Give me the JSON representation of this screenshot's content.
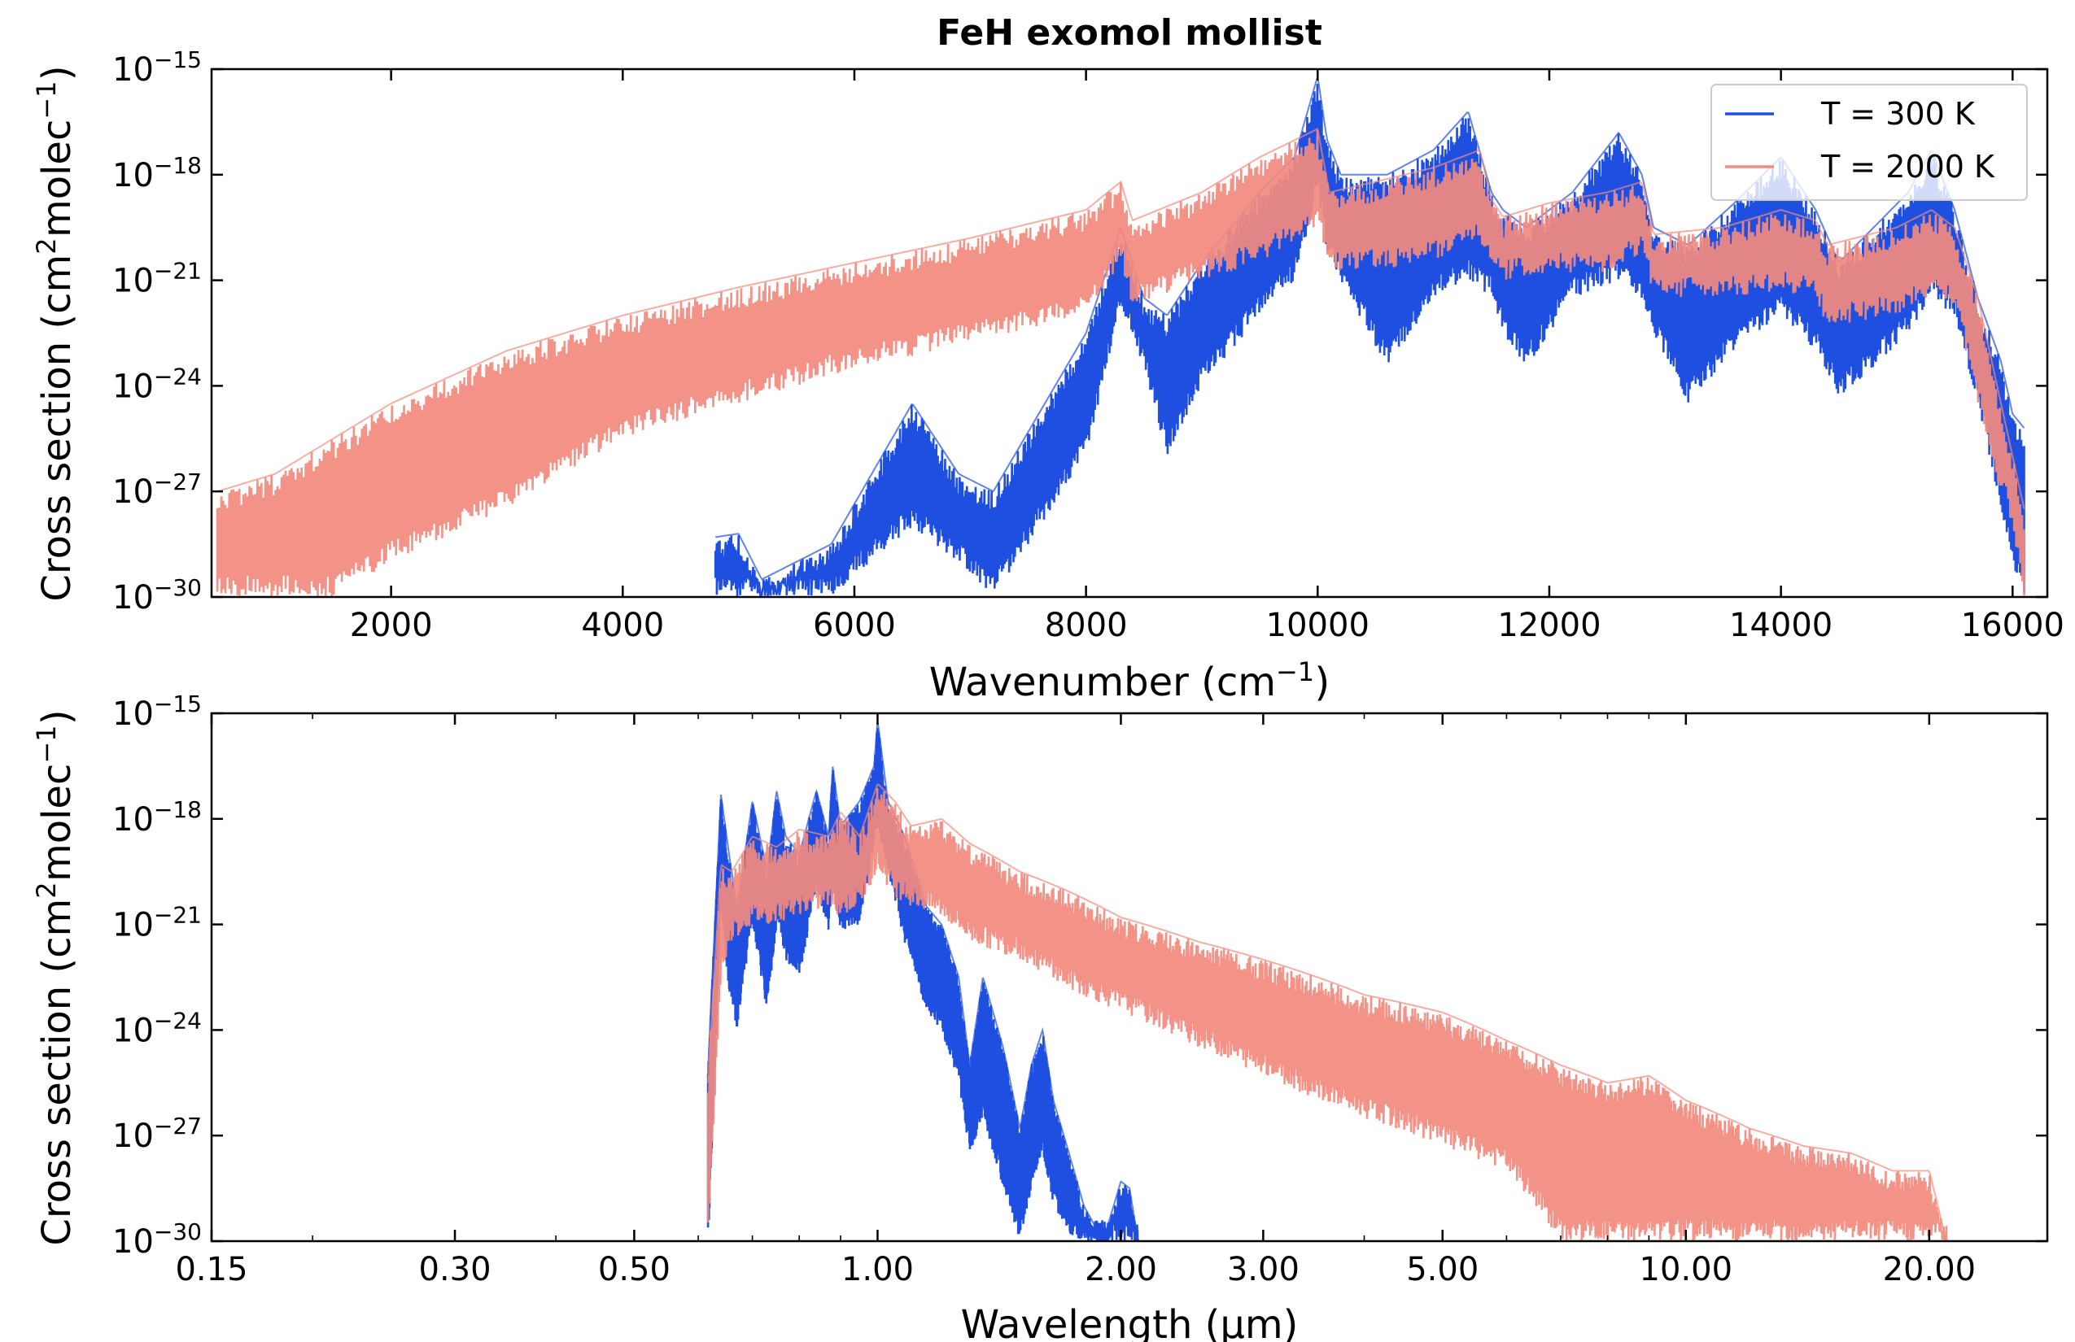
{
  "chart_data": [
    {
      "type": "line",
      "title": "FeH exomol mollist",
      "xlabel": "Wavenumber (cm⁻¹)",
      "ylabel": "Cross section (cm² molec⁻¹)",
      "xscale": "linear",
      "yscale": "log",
      "xlim": [
        450,
        16300
      ],
      "ylim": [
        1e-30,
        1e-15
      ],
      "xticks": [
        2000,
        4000,
        6000,
        8000,
        10000,
        12000,
        14000,
        16000
      ],
      "xtick_labels": [
        "2000",
        "4000",
        "6000",
        "8000",
        "10000",
        "12000",
        "14000",
        "16000"
      ],
      "ytick_exponents": [
        -15,
        -18,
        -21,
        -24,
        -27,
        -30
      ],
      "legend_position": "top-right",
      "series": [
        {
          "name": "T = 300 K",
          "color": "#1f4fe0",
          "envelope_x": [
            4800,
            5000,
            5200,
            5800,
            6500,
            6900,
            7200,
            8000,
            8300,
            8500,
            8700,
            9000,
            9500,
            9800,
            10000,
            10080,
            10200,
            10600,
            11000,
            11300,
            11500,
            11600,
            11800,
            12200,
            12600,
            12800,
            12900,
            13200,
            13600,
            14000,
            14300,
            14500,
            14800,
            15100,
            15300,
            15500,
            15700,
            15900,
            16000,
            16100
          ],
          "upper_log10": [
            -28.3,
            -28.2,
            -29.5,
            -28.5,
            -24.5,
            -26.5,
            -27,
            -22.5,
            -19.5,
            -21.5,
            -22,
            -20.5,
            -18.5,
            -17.5,
            -15.2,
            -17,
            -18,
            -18,
            -17.3,
            -16.2,
            -18.5,
            -19,
            -19.5,
            -18.5,
            -16.8,
            -18,
            -19.5,
            -20,
            -18.8,
            -17.5,
            -19,
            -20.5,
            -19.5,
            -18.5,
            -17.3,
            -19,
            -21.5,
            -23.3,
            -24.8,
            -25.2
          ],
          "lower_log10": [
            -30,
            -30,
            -30,
            -30,
            -28,
            -29,
            -30,
            -26,
            -21.8,
            -23.5,
            -26,
            -24,
            -22,
            -21,
            -18.5,
            -20.2,
            -21,
            -23.5,
            -21.5,
            -21,
            -21.5,
            -22.5,
            -23.5,
            -21.5,
            -21,
            -21.5,
            -22.5,
            -24.5,
            -23,
            -22,
            -23,
            -24.3,
            -23.5,
            -22.5,
            -21.5,
            -22,
            -24.5,
            -27.5,
            -29.2,
            -30
          ]
        },
        {
          "name": "T = 2000 K",
          "color": "#f28a7e",
          "envelope_x": [
            500,
            1000,
            1500,
            2000,
            3000,
            4000,
            5000,
            6000,
            7000,
            8000,
            8300,
            8400,
            9000,
            9500,
            10000,
            10100,
            10500,
            11000,
            11400,
            11500,
            11600,
            12000,
            12500,
            12800,
            12900,
            13500,
            14000,
            14300,
            14400,
            15000,
            15300,
            15500,
            15700,
            15800,
            16000,
            16100
          ],
          "upper_log10": [
            -27,
            -26.5,
            -25.5,
            -24.5,
            -23,
            -22,
            -21.2,
            -20.5,
            -19.8,
            -19,
            -18.2,
            -19.3,
            -18.5,
            -17.5,
            -16.7,
            -18.5,
            -18.2,
            -17.8,
            -17.3,
            -18.7,
            -19.2,
            -18.8,
            -18.5,
            -18.2,
            -19.7,
            -19.5,
            -19,
            -19.3,
            -20,
            -19.5,
            -19,
            -19.5,
            -21.5,
            -23,
            -26,
            -27.5
          ],
          "lower_log10": [
            -30,
            -30,
            -30,
            -29,
            -27.5,
            -25.5,
            -24.5,
            -23.5,
            -22.8,
            -22,
            -20.5,
            -21.8,
            -21,
            -20.5,
            -19.5,
            -20.8,
            -20.7,
            -20.5,
            -19.8,
            -20.8,
            -21,
            -20.8,
            -20.8,
            -20.3,
            -21.5,
            -21.5,
            -21.3,
            -21.5,
            -22.3,
            -22,
            -21.5,
            -21.8,
            -24.5,
            -26,
            -28,
            -30
          ]
        }
      ]
    },
    {
      "type": "line",
      "xlabel": "Wavelength (µm)",
      "ylabel": "Cross section (cm² molec⁻¹)",
      "xscale": "log",
      "yscale": "log",
      "xlim": [
        0.15,
        28
      ],
      "ylim": [
        1e-30,
        1e-15
      ],
      "xticks": [
        0.15,
        0.3,
        0.5,
        1.0,
        2.0,
        3.0,
        5.0,
        10.0,
        20.0
      ],
      "xtick_labels": [
        "0.15",
        "0.30",
        "0.50",
        "1.00",
        "2.00",
        "3.00",
        "5.00",
        "10.00",
        "20.00"
      ],
      "ytick_exponents": [
        -15,
        -18,
        -21,
        -24,
        -27,
        -30
      ],
      "series": [
        {
          "name": "T = 300 K",
          "color": "#1f4fe0",
          "envelope_x": [
            0.617,
            0.62,
            0.64,
            0.655,
            0.67,
            0.7,
            0.73,
            0.75,
            0.77,
            0.8,
            0.84,
            0.87,
            0.88,
            0.9,
            0.95,
            0.99,
            1.0,
            1.03,
            1.08,
            1.15,
            1.2,
            1.26,
            1.3,
            1.35,
            1.43,
            1.5,
            1.55,
            1.6,
            1.65,
            1.75,
            1.8,
            1.9,
            2.0,
            2.05,
            2.1
          ],
          "upper_log10": [
            -25.2,
            -24,
            -17.3,
            -19,
            -20.5,
            -17.5,
            -19.5,
            -17.2,
            -18.5,
            -19,
            -17.2,
            -18.5,
            -16.5,
            -18.2,
            -17.5,
            -16.5,
            -15.2,
            -17.5,
            -18.5,
            -20.5,
            -21,
            -22.5,
            -25,
            -22.5,
            -24.5,
            -26.8,
            -25,
            -24,
            -26,
            -28,
            -29,
            -30,
            -28.3,
            -28.5,
            -30
          ],
          "lower_log10": [
            -30,
            -29,
            -20.5,
            -23,
            -24,
            -21,
            -23.5,
            -21,
            -22,
            -22.5,
            -20,
            -21.2,
            -20,
            -21.2,
            -21,
            -18.8,
            -18.2,
            -19.5,
            -21.5,
            -23.5,
            -24,
            -25.5,
            -27.5,
            -26.5,
            -28.5,
            -30,
            -28.5,
            -27.5,
            -29,
            -30,
            -30,
            -30,
            -30,
            -30,
            -30
          ]
        },
        {
          "name": "T = 2000 K",
          "color": "#f28a7e",
          "envelope_x": [
            0.617,
            0.62,
            0.64,
            0.66,
            0.7,
            0.75,
            0.8,
            0.87,
            0.9,
            0.95,
            1.0,
            1.05,
            1.1,
            1.2,
            1.3,
            1.5,
            1.7,
            2.0,
            2.5,
            3.0,
            3.5,
            4.0,
            5.0,
            6.0,
            7.0,
            8.0,
            9.0,
            10.0,
            12.0,
            14.0,
            16.0,
            18.0,
            20.0,
            21.0
          ],
          "upper_log10": [
            -25.5,
            -24.5,
            -19.3,
            -19.5,
            -18.5,
            -18.8,
            -18.3,
            -18.5,
            -17.8,
            -18.5,
            -17,
            -17.5,
            -18.2,
            -18,
            -18.7,
            -19.5,
            -20,
            -20.8,
            -21.5,
            -22,
            -22.5,
            -23,
            -23.5,
            -24.3,
            -25,
            -25.5,
            -25.3,
            -26,
            -26.8,
            -27.3,
            -27.5,
            -28,
            -28,
            -30
          ],
          "lower_log10": [
            -30,
            -29,
            -22.5,
            -21.5,
            -21,
            -21,
            -20.8,
            -20.5,
            -20.8,
            -20.5,
            -19.5,
            -20.2,
            -20.5,
            -20.8,
            -21.5,
            -22,
            -22.8,
            -23.5,
            -24.5,
            -25.3,
            -26,
            -26.5,
            -27.3,
            -28,
            -30,
            -30,
            -30,
            -30,
            -30,
            -30,
            -30,
            -30,
            -30,
            -30
          ]
        }
      ]
    }
  ]
}
